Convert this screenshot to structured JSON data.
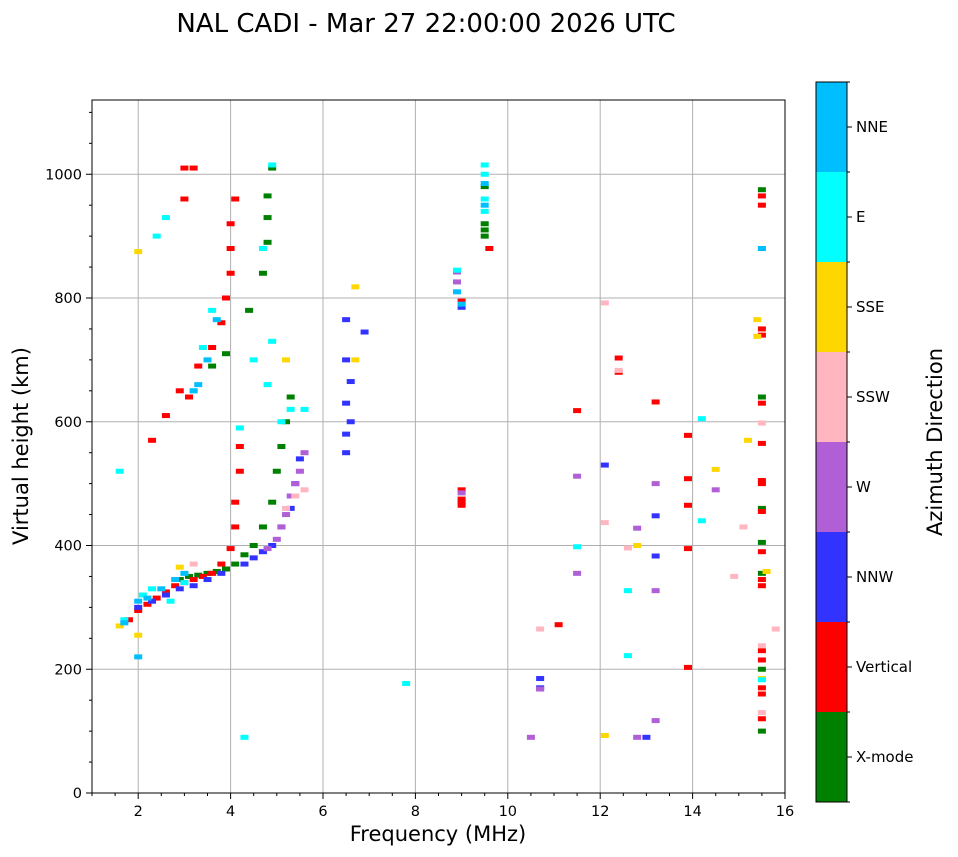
{
  "chart_data": {
    "type": "scatter",
    "title": "NAL CADI - Mar 27 22:00:00 2026 UTC",
    "xlabel": "Frequency (MHz)",
    "ylabel": "Virtual height (km)",
    "xlim": [
      1,
      16
    ],
    "ylim": [
      0,
      1120
    ],
    "xticks": [
      2,
      4,
      6,
      8,
      10,
      12,
      14,
      16
    ],
    "yticks": [
      0,
      200,
      400,
      600,
      800,
      1000
    ],
    "grid": true,
    "colorbar": {
      "label": "Azimuth Direction",
      "categories": [
        {
          "name": "X-mode",
          "color": "#008000"
        },
        {
          "name": "Vertical",
          "color": "#ff0000"
        },
        {
          "name": "NNW",
          "color": "#3333ff"
        },
        {
          "name": "W",
          "color": "#b05fd6"
        },
        {
          "name": "SSW",
          "color": "#ffb6c1"
        },
        {
          "name": "SSE",
          "color": "#ffd700"
        },
        {
          "name": "E",
          "color": "#00ffff"
        },
        {
          "name": "NNE",
          "color": "#00bfff"
        }
      ]
    },
    "series": [
      {
        "name": "X-mode",
        "points": [
          [
            2.9,
            345
          ],
          [
            3.1,
            350
          ],
          [
            3.3,
            352
          ],
          [
            3.5,
            355
          ],
          [
            3.7,
            358
          ],
          [
            3.9,
            362
          ],
          [
            4.1,
            370
          ],
          [
            4.3,
            385
          ],
          [
            4.5,
            400
          ],
          [
            4.7,
            430
          ],
          [
            4.9,
            470
          ],
          [
            5.0,
            520
          ],
          [
            5.1,
            560
          ],
          [
            5.2,
            600
          ],
          [
            5.3,
            640
          ],
          [
            3.6,
            690
          ],
          [
            3.9,
            710
          ],
          [
            4.4,
            780
          ],
          [
            4.7,
            840
          ],
          [
            4.8,
            890
          ],
          [
            4.8,
            930
          ],
          [
            4.8,
            965
          ],
          [
            4.9,
            1010
          ],
          [
            9.5,
            900
          ],
          [
            9.5,
            910
          ],
          [
            9.5,
            920
          ],
          [
            9.5,
            980
          ],
          [
            15.5,
            975
          ],
          [
            15.5,
            640
          ],
          [
            15.5,
            460
          ],
          [
            15.5,
            405
          ],
          [
            15.5,
            355
          ],
          [
            15.5,
            200
          ],
          [
            15.5,
            100
          ]
        ]
      },
      {
        "name": "Vertical",
        "points": [
          [
            1.8,
            280
          ],
          [
            2.0,
            295
          ],
          [
            2.2,
            305
          ],
          [
            2.4,
            315
          ],
          [
            2.6,
            325
          ],
          [
            2.8,
            335
          ],
          [
            3.0,
            340
          ],
          [
            3.2,
            345
          ],
          [
            3.4,
            350
          ],
          [
            3.6,
            355
          ],
          [
            3.8,
            370
          ],
          [
            4.0,
            395
          ],
          [
            4.1,
            430
          ],
          [
            4.1,
            470
          ],
          [
            4.2,
            520
          ],
          [
            4.2,
            560
          ],
          [
            3.1,
            640
          ],
          [
            3.3,
            690
          ],
          [
            3.6,
            720
          ],
          [
            3.8,
            760
          ],
          [
            3.9,
            800
          ],
          [
            4.0,
            840
          ],
          [
            4.0,
            880
          ],
          [
            4.0,
            920
          ],
          [
            4.1,
            960
          ],
          [
            2.3,
            570
          ],
          [
            2.6,
            610
          ],
          [
            2.9,
            650
          ],
          [
            3.0,
            1010
          ],
          [
            3.2,
            1010
          ],
          [
            3.0,
            960
          ],
          [
            9.0,
            465
          ],
          [
            9.0,
            470
          ],
          [
            9.0,
            475
          ],
          [
            9.0,
            490
          ],
          [
            9.0,
            795
          ],
          [
            9.6,
            880
          ],
          [
            11.1,
            272
          ],
          [
            11.5,
            618
          ],
          [
            12.4,
            680
          ],
          [
            12.4,
            703
          ],
          [
            13.2,
            632
          ],
          [
            13.9,
            578
          ],
          [
            13.9,
            508
          ],
          [
            13.9,
            465
          ],
          [
            13.9,
            395
          ],
          [
            13.9,
            203
          ],
          [
            15.5,
            965
          ],
          [
            15.5,
            950
          ],
          [
            15.5,
            750
          ],
          [
            15.5,
            740
          ],
          [
            15.5,
            630
          ],
          [
            15.5,
            565
          ],
          [
            15.5,
            500
          ],
          [
            15.5,
            505
          ],
          [
            15.5,
            455
          ],
          [
            15.5,
            390
          ],
          [
            15.5,
            345
          ],
          [
            15.5,
            335
          ],
          [
            15.5,
            230
          ],
          [
            15.5,
            215
          ],
          [
            15.5,
            170
          ],
          [
            15.5,
            160
          ],
          [
            15.5,
            120
          ]
        ]
      },
      {
        "name": "NNW",
        "points": [
          [
            2.0,
            300
          ],
          [
            2.3,
            310
          ],
          [
            2.6,
            320
          ],
          [
            2.9,
            330
          ],
          [
            3.2,
            335
          ],
          [
            3.5,
            345
          ],
          [
            3.8,
            355
          ],
          [
            4.3,
            370
          ],
          [
            4.5,
            380
          ],
          [
            4.7,
            390
          ],
          [
            4.9,
            400
          ],
          [
            5.1,
            430
          ],
          [
            5.3,
            460
          ],
          [
            5.4,
            500
          ],
          [
            5.5,
            540
          ],
          [
            6.5,
            550
          ],
          [
            6.5,
            580
          ],
          [
            6.6,
            600
          ],
          [
            6.5,
            630
          ],
          [
            6.6,
            665
          ],
          [
            6.5,
            700
          ],
          [
            6.5,
            765
          ],
          [
            6.9,
            745
          ],
          [
            9.0,
            785
          ],
          [
            10.7,
            185
          ],
          [
            10.7,
            170
          ],
          [
            12.1,
            530
          ],
          [
            13.2,
            448
          ],
          [
            13.2,
            383
          ],
          [
            13.0,
            90
          ]
        ]
      },
      {
        "name": "W",
        "points": [
          [
            4.8,
            395
          ],
          [
            5.0,
            410
          ],
          [
            5.1,
            430
          ],
          [
            5.2,
            450
          ],
          [
            5.3,
            480
          ],
          [
            5.4,
            500
          ],
          [
            5.5,
            520
          ],
          [
            5.6,
            550
          ],
          [
            8.9,
            842
          ],
          [
            8.9,
            826
          ],
          [
            9.0,
            485
          ],
          [
            10.5,
            90
          ],
          [
            10.7,
            168
          ],
          [
            11.5,
            512
          ],
          [
            11.5,
            355
          ],
          [
            12.8,
            428
          ],
          [
            13.2,
            500
          ],
          [
            13.2,
            327
          ],
          [
            13.2,
            117
          ],
          [
            12.8,
            90
          ],
          [
            14.5,
            490
          ]
        ]
      },
      {
        "name": "SSW",
        "points": [
          [
            5.2,
            460
          ],
          [
            5.4,
            480
          ],
          [
            5.6,
            490
          ],
          [
            3.2,
            370
          ],
          [
            12.1,
            792
          ],
          [
            12.1,
            437
          ],
          [
            12.6,
            396
          ],
          [
            12.4,
            683
          ],
          [
            14.9,
            350
          ],
          [
            15.1,
            430
          ],
          [
            15.5,
            598
          ],
          [
            15.5,
            238
          ],
          [
            15.5,
            130
          ],
          [
            15.8,
            265
          ],
          [
            10.7,
            265
          ]
        ]
      },
      {
        "name": "SSE",
        "points": [
          [
            1.6,
            270
          ],
          [
            2.0,
            255
          ],
          [
            2.0,
            875
          ],
          [
            2.9,
            365
          ],
          [
            5.2,
            700
          ],
          [
            6.7,
            818
          ],
          [
            6.7,
            700
          ],
          [
            12.1,
            93
          ],
          [
            12.8,
            400
          ],
          [
            14.5,
            523
          ],
          [
            15.2,
            570
          ],
          [
            15.4,
            765
          ],
          [
            15.4,
            738
          ],
          [
            15.6,
            358
          ],
          [
            15.5,
            185
          ]
        ]
      },
      {
        "name": "E",
        "points": [
          [
            1.6,
            520
          ],
          [
            1.7,
            280
          ],
          [
            2.1,
            320
          ],
          [
            2.3,
            330
          ],
          [
            2.4,
            900
          ],
          [
            2.6,
            930
          ],
          [
            2.7,
            310
          ],
          [
            3.0,
            340
          ],
          [
            3.2,
            650
          ],
          [
            3.4,
            720
          ],
          [
            3.6,
            780
          ],
          [
            4.2,
            590
          ],
          [
            4.5,
            700
          ],
          [
            4.7,
            880
          ],
          [
            4.8,
            660
          ],
          [
            4.9,
            730
          ],
          [
            5.1,
            600
          ],
          [
            5.3,
            620
          ],
          [
            5.6,
            620
          ],
          [
            9.5,
            940
          ],
          [
            9.5,
            960
          ],
          [
            9.5,
            1000
          ],
          [
            9.5,
            1015
          ],
          [
            8.9,
            845
          ],
          [
            7.8,
            177
          ],
          [
            11.5,
            398
          ],
          [
            12.6,
            327
          ],
          [
            12.6,
            222
          ],
          [
            14.2,
            605
          ],
          [
            14.2,
            440
          ],
          [
            15.5,
            880
          ],
          [
            15.5,
            183
          ],
          [
            4.3,
            90
          ],
          [
            4.9,
            1015
          ]
        ]
      },
      {
        "name": "NNE",
        "points": [
          [
            1.7,
            275
          ],
          [
            2.0,
            310
          ],
          [
            2.2,
            315
          ],
          [
            2.5,
            330
          ],
          [
            2.8,
            345
          ],
          [
            3.0,
            355
          ],
          [
            3.2,
            650
          ],
          [
            3.3,
            660
          ],
          [
            3.5,
            700
          ],
          [
            3.7,
            765
          ],
          [
            2.0,
            220
          ],
          [
            9.0,
            790
          ],
          [
            8.9,
            810
          ],
          [
            9.5,
            950
          ],
          [
            9.5,
            985
          ],
          [
            15.5,
            880
          ]
        ]
      }
    ]
  }
}
